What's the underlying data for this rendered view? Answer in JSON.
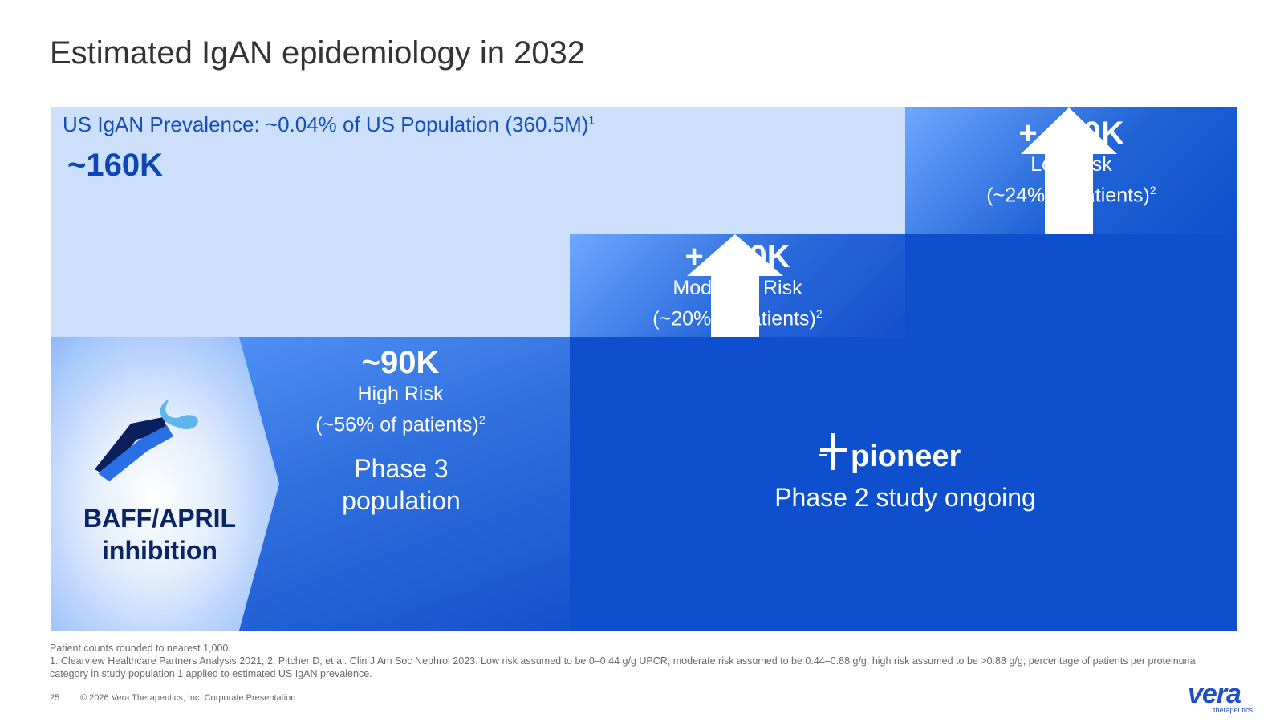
{
  "title": "Estimated IgAN epidemiology in 2032",
  "prevalence": {
    "label": "US IgAN Prevalence: ~0.04% of US Population (360.5M)",
    "footnote_ref": "1",
    "value": "~160K"
  },
  "low_risk": {
    "value": "+ ~40K",
    "label": "Low Risk",
    "share": "(~24% of patients)",
    "footnote_ref": "2"
  },
  "moderate_risk": {
    "value": "+ ~30K",
    "label": "Moderate Risk",
    "share": "(~20% of patients)",
    "footnote_ref": "2"
  },
  "high_risk": {
    "value": "~90K",
    "label": "High Risk",
    "share": "(~56% of patients)",
    "footnote_ref": "2",
    "phase_line1": "Phase 3",
    "phase_line2": "population"
  },
  "mechanism": {
    "line1": "BAFF/APRIL",
    "line2": "inhibition",
    "icon": "baff-april-molecule-icon"
  },
  "pioneer": {
    "logo_text": "pioneer",
    "status": "Phase 2 study ongoing",
    "icon": "pioneer-cross-icon"
  },
  "footnotes": {
    "line1": "Patient counts rounded to nearest 1,000.",
    "line2": "1. Clearview Healthcare Partners Analysis 2021; 2. Pitcher D, et al. Clin J Am Soc Nephrol 2023. Low risk assumed to be 0–0.44 g/g UPCR, moderate risk assumed to be 0.44–0.88 g/g, high risk assumed to be >0.88 g/g; percentage of patients per proteinuria category in study population 1 applied to estimated US IgAN prevalence."
  },
  "footer": {
    "page_number": "25",
    "copyright": "© 2026 Vera Therapeutics, Inc. Corporate Presentation",
    "logo_word": "vera",
    "logo_sub": "therapeutics"
  },
  "colors": {
    "dark_blue": "#0d4fcc",
    "light_blue": "#cde0fb",
    "text_blue": "#1550b6",
    "navy": "#0b2468"
  }
}
